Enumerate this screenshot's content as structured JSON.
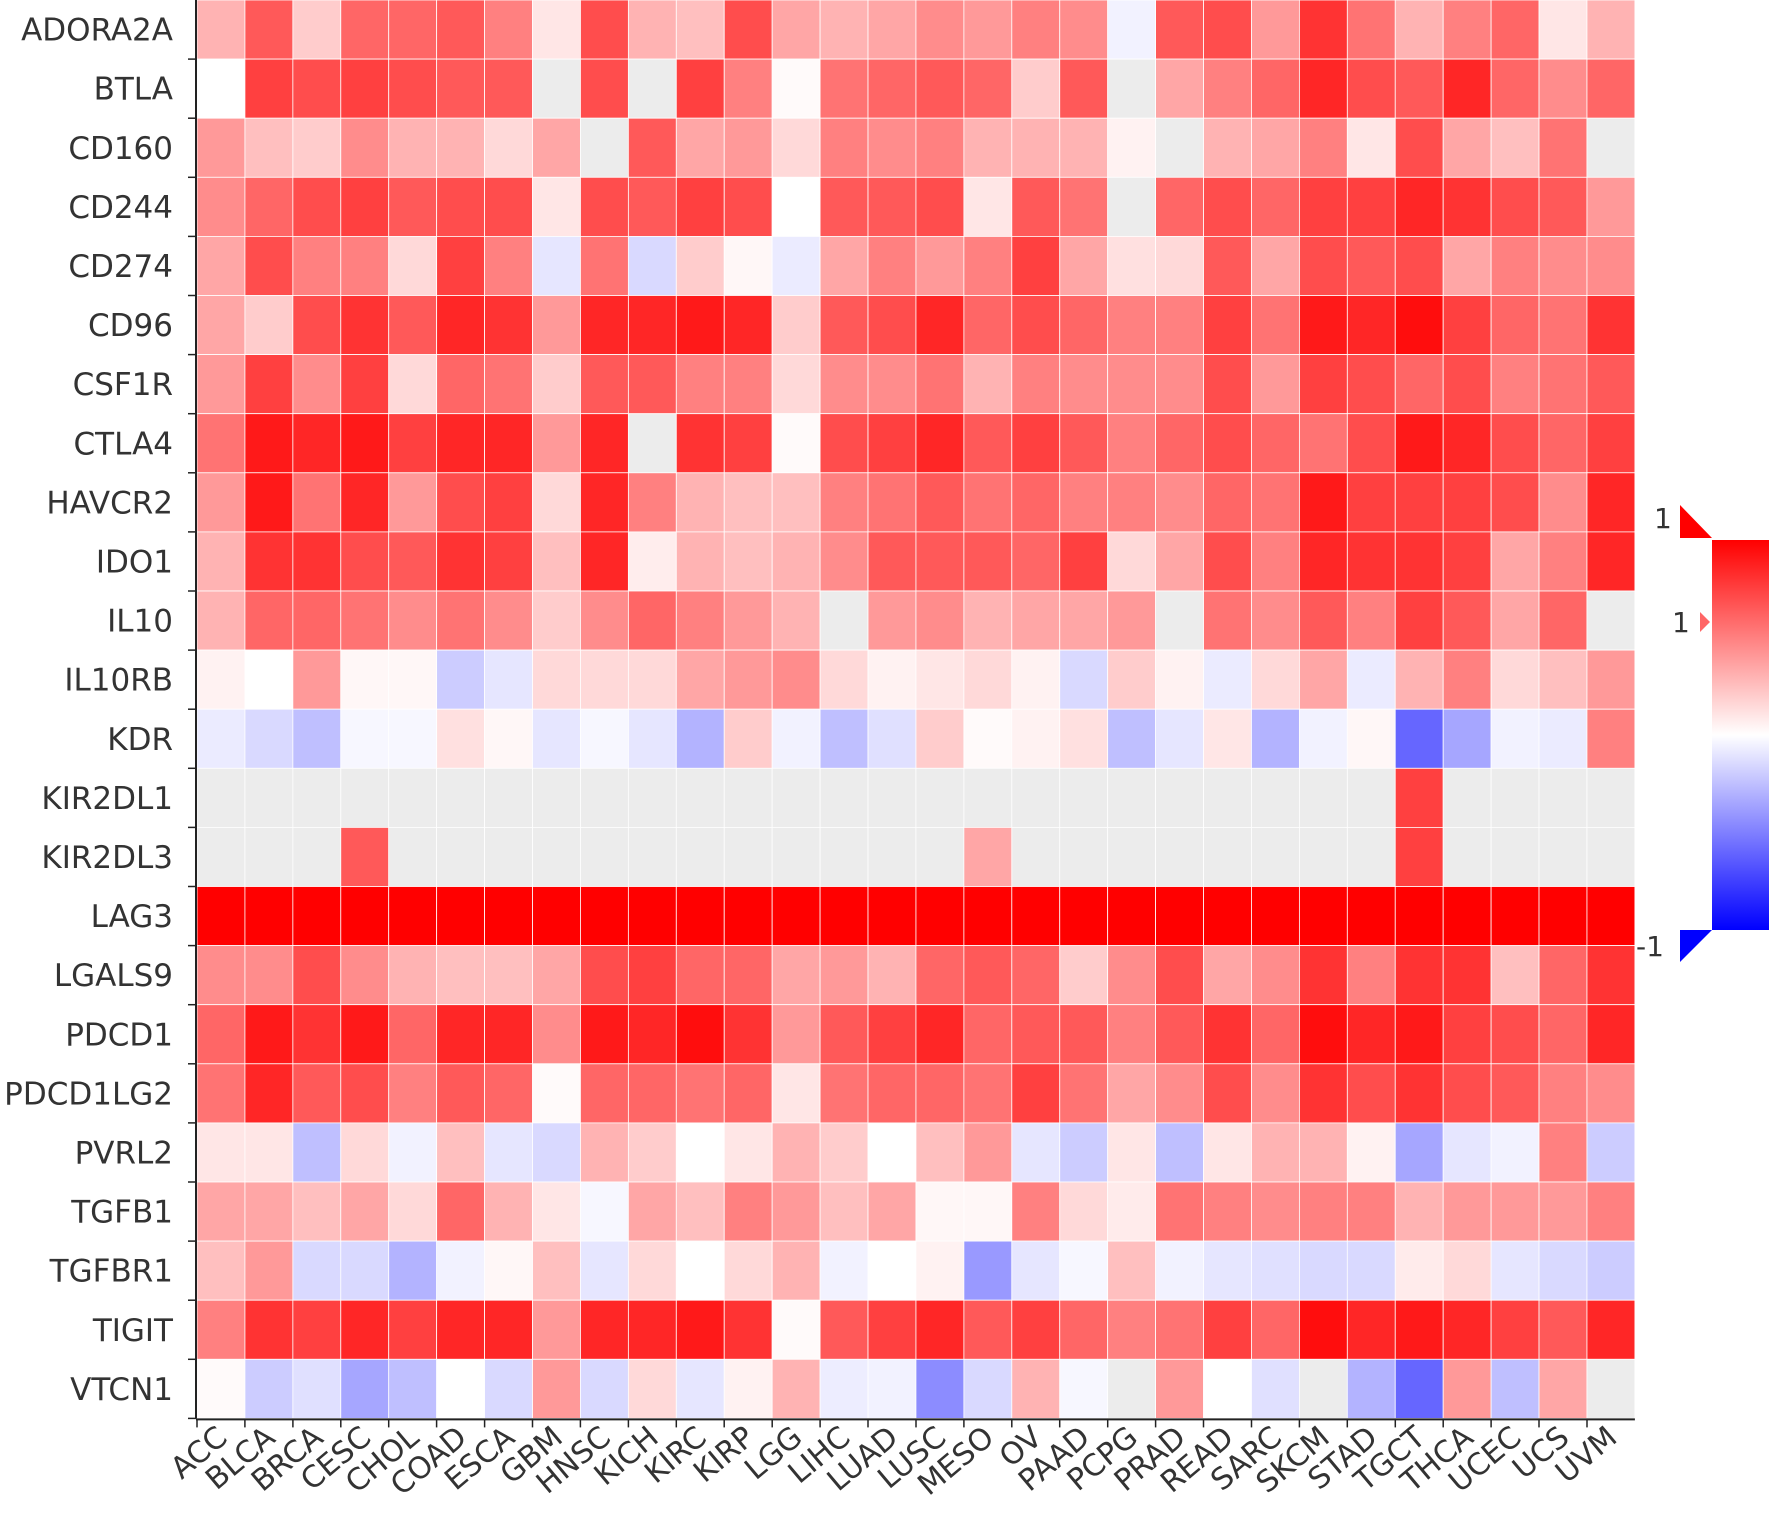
{
  "chart_data": {
    "type": "heatmap",
    "title": "",
    "xlabel": "",
    "ylabel": "",
    "columns": [
      "ACC",
      "BLCA",
      "BRCA",
      "CESC",
      "CHOL",
      "COAD",
      "ESCA",
      "GBM",
      "HNSC",
      "KICH",
      "KIRC",
      "KIRP",
      "LGG",
      "LIHC",
      "LUAD",
      "LUSC",
      "MESO",
      "OV",
      "PAAD",
      "PCPG",
      "PRAD",
      "READ",
      "SARC",
      "SKCM",
      "STAD",
      "TGCT",
      "THCA",
      "UCEC",
      "UCS",
      "UVM"
    ],
    "rows": [
      "ADORA2A",
      "BTLA",
      "CD160",
      "CD244",
      "CD274",
      "CD96",
      "CSF1R",
      "CTLA4",
      "HAVCR2",
      "IDO1",
      "IL10",
      "IL10RB",
      "KDR",
      "KIR2DL1",
      "KIR2DL3",
      "LAG3",
      "LGALS9",
      "PDCD1",
      "PDCD1LG2",
      "PVRL2",
      "TGFB1",
      "TGFBR1",
      "TIGIT",
      "VTCN1"
    ],
    "values": [
      [
        0.3,
        0.65,
        0.2,
        0.6,
        0.6,
        0.65,
        0.5,
        0.1,
        0.7,
        0.3,
        0.25,
        0.7,
        0.35,
        0.3,
        0.35,
        0.45,
        0.4,
        0.5,
        0.45,
        -0.05,
        0.65,
        0.7,
        0.4,
        0.8,
        0.55,
        0.3,
        0.5,
        0.6,
        0.1,
        0.3
      ],
      [
        0.0,
        0.75,
        0.7,
        0.75,
        0.7,
        0.65,
        0.65,
        null,
        0.7,
        null,
        0.75,
        0.5,
        0.02,
        0.55,
        0.6,
        0.65,
        0.6,
        0.2,
        0.65,
        null,
        0.35,
        0.5,
        0.6,
        0.85,
        0.7,
        0.65,
        0.85,
        0.6,
        0.45,
        0.6
      ],
      [
        0.4,
        0.25,
        0.2,
        0.45,
        0.3,
        0.3,
        0.15,
        0.35,
        null,
        0.65,
        0.35,
        0.4,
        0.15,
        0.5,
        0.45,
        0.5,
        0.3,
        0.3,
        0.3,
        0.05,
        null,
        0.3,
        0.35,
        0.5,
        0.1,
        0.7,
        0.35,
        0.25,
        0.55,
        null
      ],
      [
        0.45,
        0.6,
        0.7,
        0.75,
        0.65,
        0.7,
        0.7,
        0.1,
        0.7,
        0.65,
        0.75,
        0.7,
        0.0,
        0.65,
        0.65,
        0.7,
        0.1,
        0.65,
        0.55,
        null,
        0.6,
        0.7,
        0.6,
        0.75,
        0.75,
        0.85,
        0.8,
        0.7,
        0.65,
        0.4
      ],
      [
        0.35,
        0.7,
        0.5,
        0.5,
        0.15,
        0.75,
        0.5,
        -0.1,
        0.55,
        -0.15,
        0.2,
        0.03,
        -0.08,
        0.35,
        0.5,
        0.4,
        0.5,
        0.75,
        0.35,
        0.12,
        0.15,
        0.65,
        0.35,
        0.7,
        0.65,
        0.7,
        0.35,
        0.5,
        0.45,
        0.45
      ],
      [
        0.35,
        0.2,
        0.7,
        0.8,
        0.65,
        0.85,
        0.8,
        0.4,
        0.85,
        0.85,
        0.9,
        0.85,
        0.2,
        0.65,
        0.7,
        0.85,
        0.6,
        0.7,
        0.6,
        0.5,
        0.5,
        0.75,
        0.55,
        0.9,
        0.85,
        0.95,
        0.75,
        0.6,
        0.55,
        0.8
      ],
      [
        0.4,
        0.75,
        0.45,
        0.75,
        0.15,
        0.6,
        0.55,
        0.2,
        0.65,
        0.65,
        0.5,
        0.5,
        0.15,
        0.45,
        0.45,
        0.55,
        0.3,
        0.5,
        0.45,
        0.45,
        0.45,
        0.7,
        0.4,
        0.75,
        0.7,
        0.6,
        0.7,
        0.5,
        0.55,
        0.65
      ],
      [
        0.55,
        0.9,
        0.85,
        0.9,
        0.75,
        0.85,
        0.85,
        0.4,
        0.85,
        null,
        0.8,
        0.75,
        0.02,
        0.7,
        0.75,
        0.85,
        0.65,
        0.75,
        0.65,
        0.5,
        0.6,
        0.7,
        0.6,
        0.55,
        0.7,
        0.9,
        0.85,
        0.7,
        0.6,
        0.75
      ],
      [
        0.4,
        0.9,
        0.55,
        0.85,
        0.4,
        0.7,
        0.75,
        0.15,
        0.85,
        0.5,
        0.3,
        0.25,
        0.25,
        0.5,
        0.55,
        0.65,
        0.55,
        0.6,
        0.5,
        0.5,
        0.45,
        0.6,
        0.55,
        0.9,
        0.75,
        0.75,
        0.75,
        0.7,
        0.45,
        0.85
      ],
      [
        0.3,
        0.8,
        0.8,
        0.7,
        0.65,
        0.8,
        0.75,
        0.25,
        0.85,
        0.07,
        0.3,
        0.25,
        0.3,
        0.45,
        0.65,
        0.65,
        0.65,
        0.6,
        0.75,
        0.15,
        0.35,
        0.7,
        0.5,
        0.85,
        0.8,
        0.8,
        0.75,
        0.35,
        0.5,
        0.85
      ],
      [
        0.3,
        0.6,
        0.6,
        0.55,
        0.45,
        0.55,
        0.45,
        0.2,
        0.45,
        0.6,
        0.5,
        0.4,
        0.3,
        null,
        0.4,
        0.45,
        0.3,
        0.35,
        0.35,
        0.4,
        null,
        0.55,
        0.45,
        0.65,
        0.5,
        0.75,
        0.65,
        0.35,
        0.6,
        null
      ],
      [
        0.05,
        0.0,
        0.4,
        0.03,
        0.03,
        -0.2,
        -0.1,
        0.15,
        0.15,
        0.15,
        0.35,
        0.4,
        0.45,
        0.15,
        0.05,
        0.1,
        0.15,
        0.05,
        -0.15,
        0.2,
        0.05,
        -0.08,
        0.15,
        0.35,
        -0.08,
        0.3,
        0.5,
        0.15,
        0.25,
        0.4
      ],
      [
        -0.08,
        -0.15,
        -0.25,
        -0.03,
        -0.03,
        0.12,
        0.03,
        -0.1,
        -0.03,
        -0.1,
        -0.3,
        0.2,
        -0.05,
        -0.25,
        -0.12,
        0.2,
        0.02,
        0.05,
        0.12,
        -0.25,
        -0.1,
        0.1,
        -0.3,
        -0.05,
        0.03,
        -0.6,
        -0.35,
        -0.05,
        -0.08,
        0.5
      ],
      [
        null,
        null,
        null,
        null,
        null,
        null,
        null,
        null,
        null,
        null,
        null,
        null,
        null,
        null,
        null,
        null,
        null,
        null,
        null,
        null,
        null,
        null,
        null,
        null,
        null,
        0.75,
        null,
        null,
        null,
        null
      ],
      [
        null,
        null,
        null,
        0.65,
        null,
        null,
        null,
        null,
        null,
        null,
        null,
        null,
        null,
        null,
        null,
        null,
        0.35,
        null,
        null,
        null,
        null,
        null,
        null,
        null,
        null,
        0.75,
        null,
        null,
        null,
        null
      ],
      [
        1.0,
        1.0,
        1.0,
        1.0,
        1.0,
        1.0,
        1.0,
        1.0,
        1.0,
        1.0,
        1.0,
        1.0,
        1.0,
        1.0,
        1.0,
        1.0,
        1.0,
        1.0,
        1.0,
        1.0,
        1.0,
        1.0,
        1.0,
        1.0,
        1.0,
        1.0,
        1.0,
        1.0,
        1.0,
        1.0
      ],
      [
        0.45,
        0.45,
        0.7,
        0.45,
        0.3,
        0.25,
        0.25,
        0.35,
        0.7,
        0.75,
        0.6,
        0.6,
        0.35,
        0.4,
        0.3,
        0.6,
        0.65,
        0.6,
        0.2,
        0.45,
        0.7,
        0.35,
        0.45,
        0.8,
        0.5,
        0.8,
        0.8,
        0.25,
        0.6,
        0.8
      ],
      [
        0.6,
        0.9,
        0.8,
        0.9,
        0.6,
        0.85,
        0.85,
        0.45,
        0.9,
        0.85,
        0.95,
        0.8,
        0.4,
        0.65,
        0.75,
        0.85,
        0.6,
        0.65,
        0.65,
        0.5,
        0.65,
        0.8,
        0.6,
        0.95,
        0.85,
        0.9,
        0.75,
        0.7,
        0.6,
        0.85
      ],
      [
        0.55,
        0.85,
        0.65,
        0.7,
        0.5,
        0.65,
        0.6,
        0.02,
        0.6,
        0.6,
        0.55,
        0.6,
        0.1,
        0.55,
        0.6,
        0.6,
        0.55,
        0.75,
        0.55,
        0.35,
        0.45,
        0.7,
        0.45,
        0.8,
        0.7,
        0.8,
        0.7,
        0.65,
        0.5,
        0.45
      ],
      [
        0.1,
        0.1,
        -0.25,
        0.15,
        -0.05,
        0.25,
        -0.1,
        -0.15,
        0.3,
        0.2,
        0.0,
        0.1,
        0.3,
        0.2,
        0.0,
        0.25,
        0.4,
        -0.1,
        -0.2,
        0.1,
        -0.25,
        0.1,
        0.3,
        0.3,
        0.05,
        -0.35,
        -0.1,
        -0.05,
        0.5,
        -0.2
      ],
      [
        0.35,
        0.35,
        0.25,
        0.35,
        0.15,
        0.6,
        0.3,
        0.1,
        -0.03,
        0.35,
        0.25,
        0.5,
        0.4,
        0.25,
        0.35,
        0.03,
        0.03,
        0.5,
        0.15,
        0.08,
        0.55,
        0.5,
        0.45,
        0.5,
        0.5,
        0.3,
        0.4,
        0.4,
        0.4,
        0.5
      ],
      [
        0.25,
        0.4,
        -0.15,
        -0.15,
        -0.3,
        -0.05,
        0.03,
        0.25,
        -0.1,
        0.15,
        0.0,
        0.15,
        0.3,
        -0.05,
        0.0,
        0.05,
        -0.4,
        -0.1,
        -0.03,
        0.25,
        -0.05,
        -0.1,
        -0.12,
        -0.15,
        -0.15,
        0.08,
        0.15,
        -0.1,
        -0.15,
        -0.2
      ],
      [
        0.5,
        0.8,
        0.75,
        0.85,
        0.75,
        0.85,
        0.85,
        0.4,
        0.85,
        0.85,
        0.9,
        0.8,
        0.02,
        0.65,
        0.75,
        0.85,
        0.65,
        0.75,
        0.6,
        0.5,
        0.55,
        0.75,
        0.6,
        0.95,
        0.85,
        0.9,
        0.85,
        0.75,
        0.65,
        0.85
      ],
      [
        0.02,
        -0.2,
        -0.12,
        -0.35,
        -0.25,
        0.0,
        -0.15,
        0.4,
        -0.15,
        0.15,
        -0.1,
        0.05,
        0.3,
        -0.07,
        -0.05,
        -0.45,
        -0.15,
        0.3,
        -0.03,
        null,
        0.4,
        0.0,
        -0.12,
        null,
        -0.3,
        -0.6,
        0.4,
        -0.25,
        0.35,
        null
      ]
    ],
    "null_color": "#ececec",
    "color_scale": {
      "min_color": "#0000ff",
      "mid_color": "#ffffff",
      "max_color": "#ff0000"
    },
    "colorbar_labels": {
      "top": "1",
      "marker": "1",
      "bottom": "-1"
    },
    "grid": true,
    "legend": "right"
  }
}
